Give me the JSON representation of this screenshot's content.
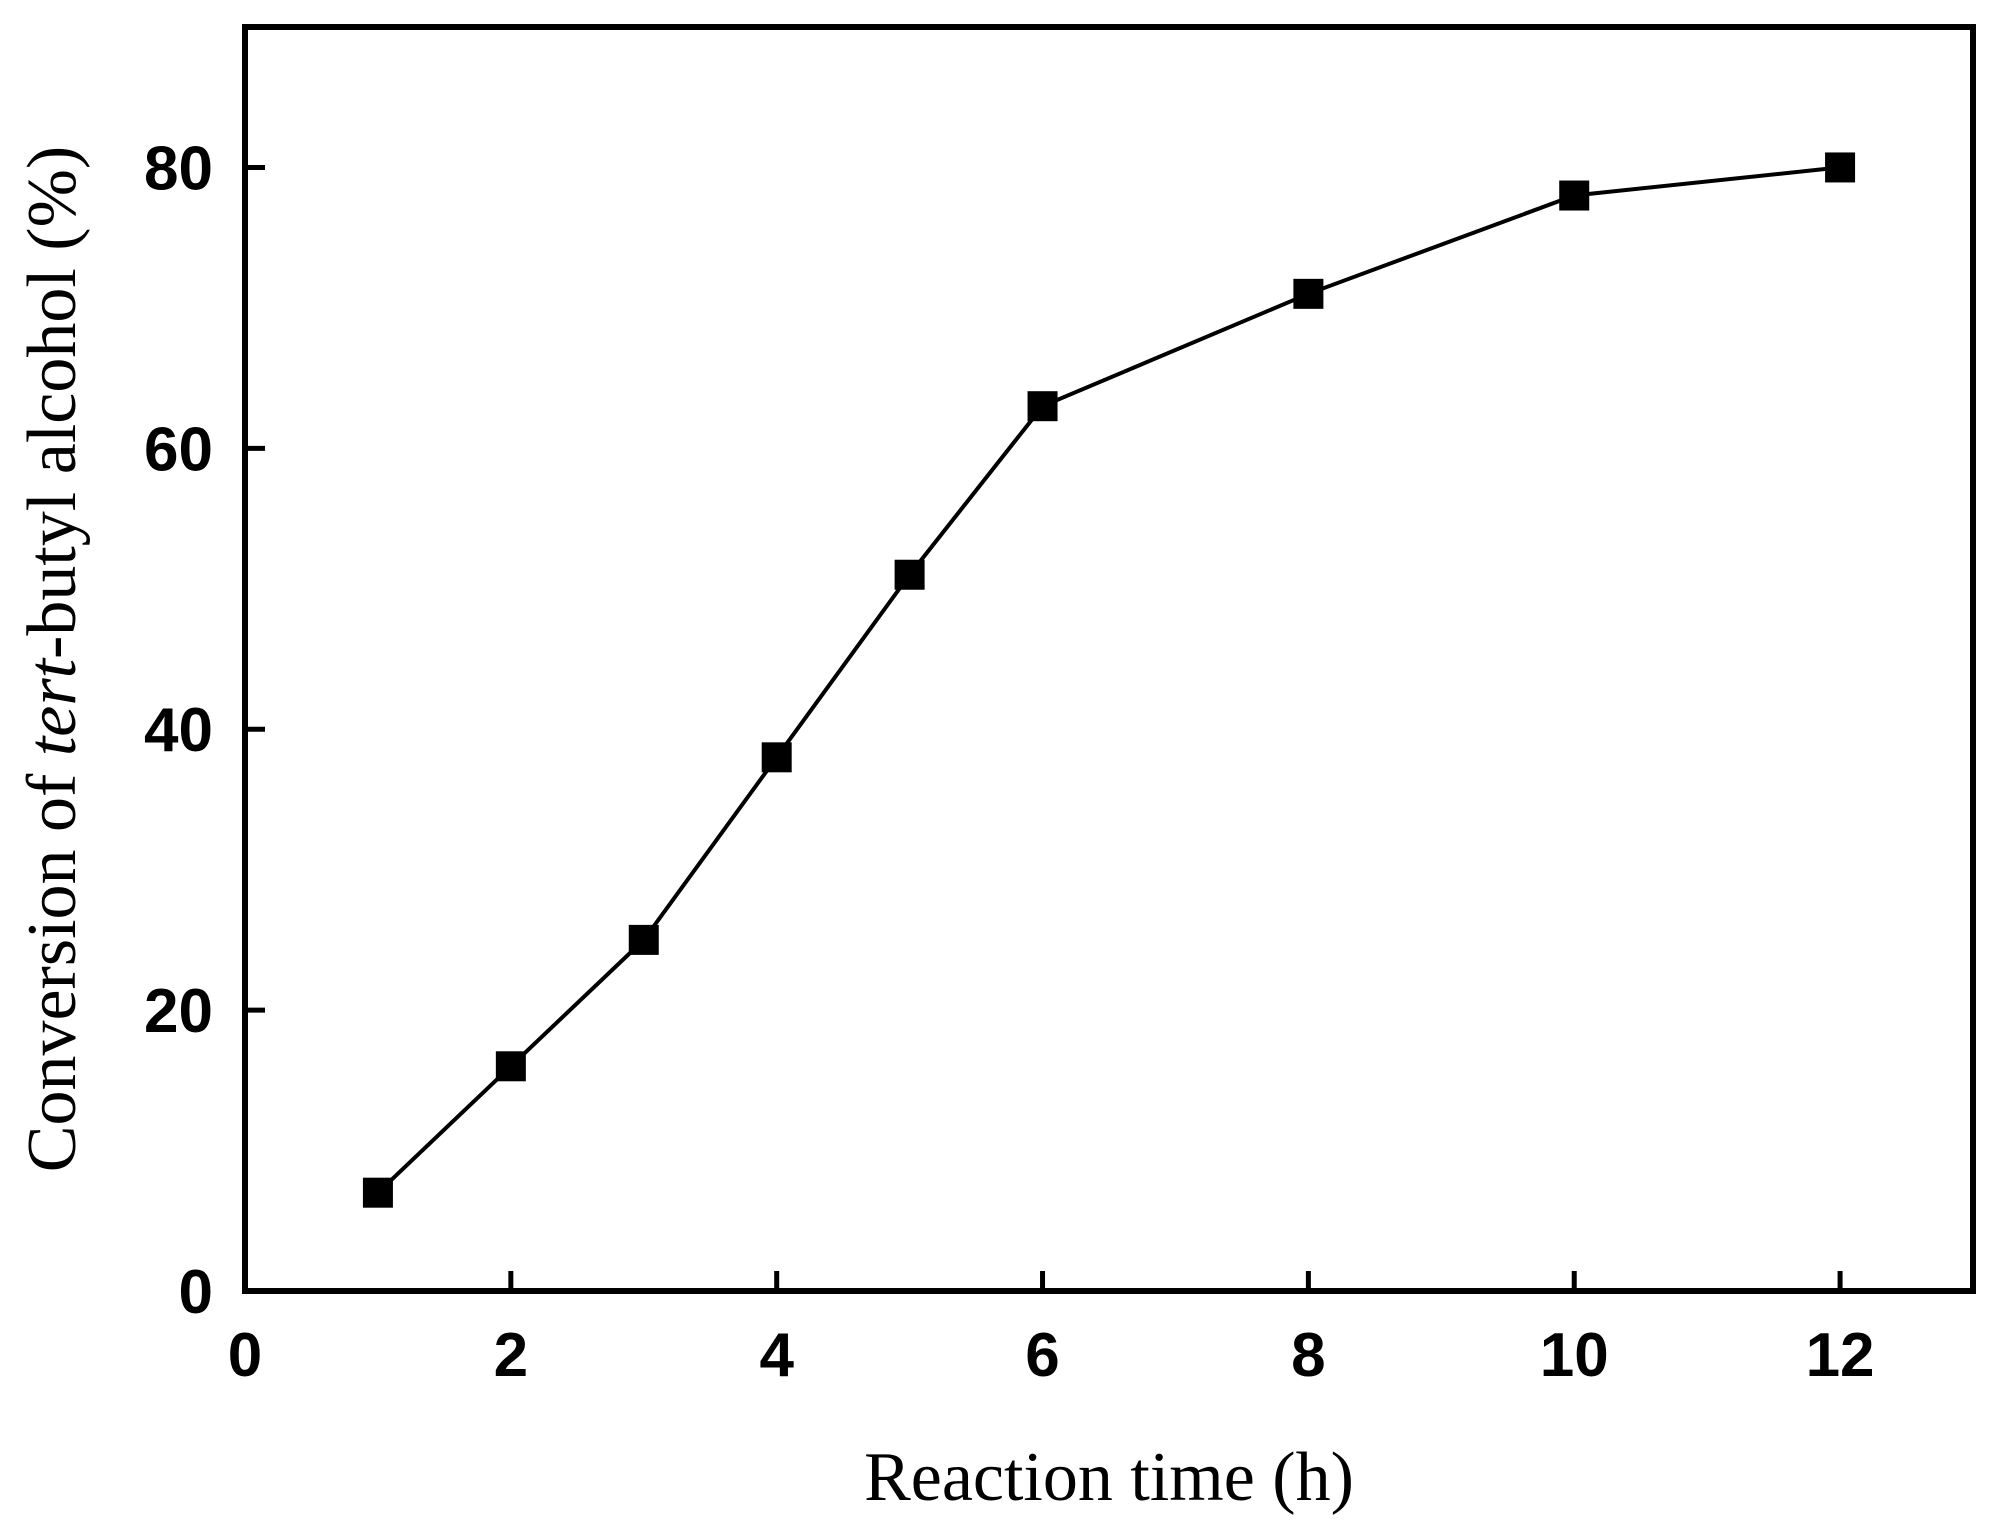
{
  "chart_data": {
    "type": "line",
    "title": "",
    "xlabel": "Reaction time (h)",
    "ylabel": {
      "prefix": "Conversion of ",
      "italic": "tert",
      "suffix": "-butyl alcohol (%)"
    },
    "xlim": [
      0,
      13
    ],
    "ylim": [
      0,
      90
    ],
    "xticks": [
      0,
      2,
      4,
      6,
      8,
      10,
      12
    ],
    "yticks": [
      0,
      20,
      40,
      60,
      80
    ],
    "grid": false,
    "series": [
      {
        "marker": "square",
        "color": "#000000",
        "x": [
          1,
          2,
          3,
          4,
          5,
          6,
          8,
          10,
          12
        ],
        "y": [
          7,
          16,
          25,
          38,
          51,
          63,
          71,
          78,
          80
        ]
      }
    ]
  }
}
